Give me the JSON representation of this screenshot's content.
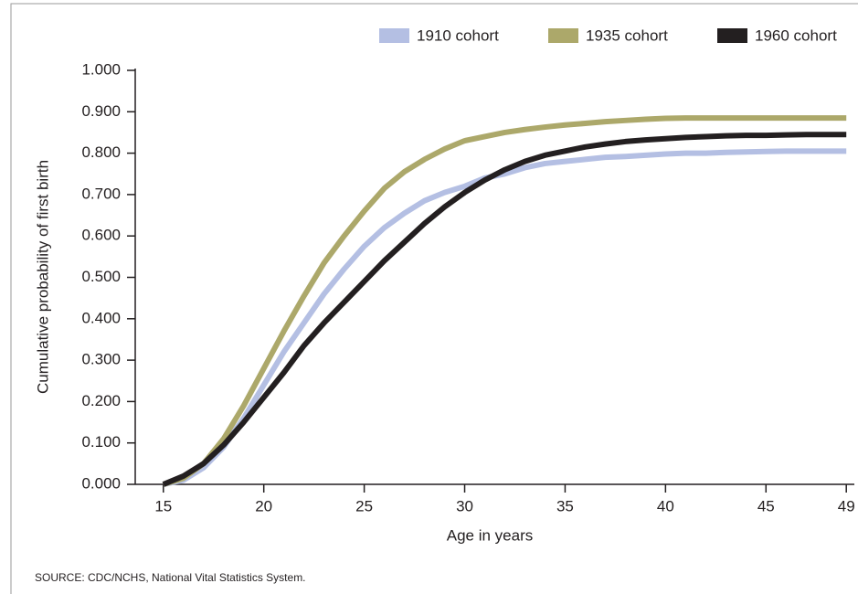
{
  "chart_data": {
    "type": "line",
    "x_label": "Age in years",
    "y_label": "Cumulative probability of first birth",
    "source": "SOURCE: CDC/NCHS, National Vital Statistics System.",
    "x": [
      15,
      16,
      17,
      18,
      19,
      20,
      21,
      22,
      23,
      24,
      25,
      26,
      27,
      28,
      29,
      30,
      31,
      32,
      33,
      34,
      35,
      36,
      37,
      38,
      39,
      40,
      41,
      42,
      43,
      44,
      45,
      46,
      47,
      48,
      49
    ],
    "series": [
      {
        "name": "1910 cohort",
        "color": "#b4bfe3",
        "values": [
          0,
          0.01,
          0.04,
          0.09,
          0.16,
          0.24,
          0.32,
          0.39,
          0.46,
          0.52,
          0.575,
          0.62,
          0.655,
          0.685,
          0.705,
          0.72,
          0.74,
          0.75,
          0.765,
          0.775,
          0.78,
          0.785,
          0.79,
          0.792,
          0.795,
          0.798,
          0.8,
          0.8,
          0.802,
          0.803,
          0.804,
          0.805,
          0.805,
          0.805,
          0.805
        ]
      },
      {
        "name": "1935 cohort",
        "color": "#aca86a",
        "values": [
          0,
          0.015,
          0.05,
          0.11,
          0.19,
          0.28,
          0.37,
          0.455,
          0.535,
          0.6,
          0.66,
          0.715,
          0.755,
          0.785,
          0.81,
          0.83,
          0.84,
          0.85,
          0.857,
          0.863,
          0.868,
          0.872,
          0.876,
          0.879,
          0.882,
          0.884,
          0.885,
          0.885,
          0.885,
          0.885,
          0.885,
          0.885,
          0.885,
          0.885,
          0.885
        ]
      },
      {
        "name": "1960 cohort",
        "color": "#231f20",
        "values": [
          0,
          0.02,
          0.05,
          0.095,
          0.15,
          0.21,
          0.27,
          0.335,
          0.39,
          0.44,
          0.49,
          0.54,
          0.585,
          0.63,
          0.67,
          0.705,
          0.735,
          0.76,
          0.78,
          0.795,
          0.805,
          0.815,
          0.822,
          0.828,
          0.832,
          0.835,
          0.838,
          0.84,
          0.842,
          0.843,
          0.843,
          0.844,
          0.845,
          0.845,
          0.845
        ]
      }
    ],
    "xlim": [
      13.6,
      49.4
    ],
    "xticks": [
      15,
      20,
      25,
      30,
      35,
      40,
      45,
      49
    ],
    "ylim": [
      0,
      1
    ],
    "yticks": [
      {
        "value": 0,
        "label": "0.000"
      },
      {
        "value": 0.1,
        "label": "0.100"
      },
      {
        "value": 0.2,
        "label": "0.200"
      },
      {
        "value": 0.3,
        "label": "0.300"
      },
      {
        "value": 0.4,
        "label": "0.400"
      },
      {
        "value": 0.5,
        "label": "0.500"
      },
      {
        "value": 0.6,
        "label": "0.600"
      },
      {
        "value": 0.7,
        "label": "0.700"
      },
      {
        "value": 0.8,
        "label": "0.800"
      },
      {
        "value": 0.9,
        "label": "0.900"
      },
      {
        "value": 1,
        "label": "1.000"
      }
    ],
    "legend": "top-right"
  }
}
